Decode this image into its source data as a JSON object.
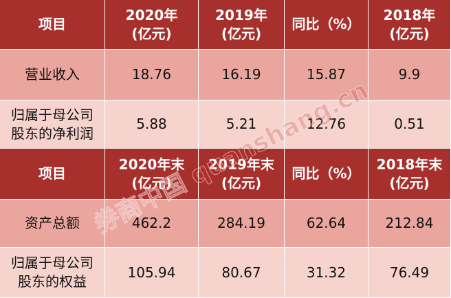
{
  "tables": [
    {
      "header": [
        [
          "项目"
        ],
        [
          "2020年",
          "(亿元)"
        ],
        [
          "2019年",
          "(亿元)"
        ],
        [
          "同比（%）"
        ],
        [
          "2018年",
          "(亿元)"
        ]
      ],
      "rows": [
        [
          [
            "营业收入"
          ],
          "18.76",
          "16.19",
          "15.87",
          "9.9"
        ],
        [
          [
            "归属于母公司",
            "股东的净利润"
          ],
          "5.88",
          "5.21",
          "12.76",
          "0.51"
        ]
      ]
    },
    {
      "header": [
        [
          "项目"
        ],
        [
          "2020年末",
          "(亿元)"
        ],
        [
          "2019年末",
          "(亿元)"
        ],
        [
          "同比（%）"
        ],
        [
          "2018年末",
          "(亿元)"
        ]
      ],
      "rows": [
        [
          [
            "资产总额"
          ],
          "462.2",
          "284.19",
          "62.64",
          "212.84"
        ],
        [
          [
            "归属于母公司",
            "股东的权益"
          ],
          "105.94",
          "80.67",
          "31.32",
          "76.49"
        ]
      ]
    }
  ],
  "watermark": "券商中国 quanshang.cn"
}
